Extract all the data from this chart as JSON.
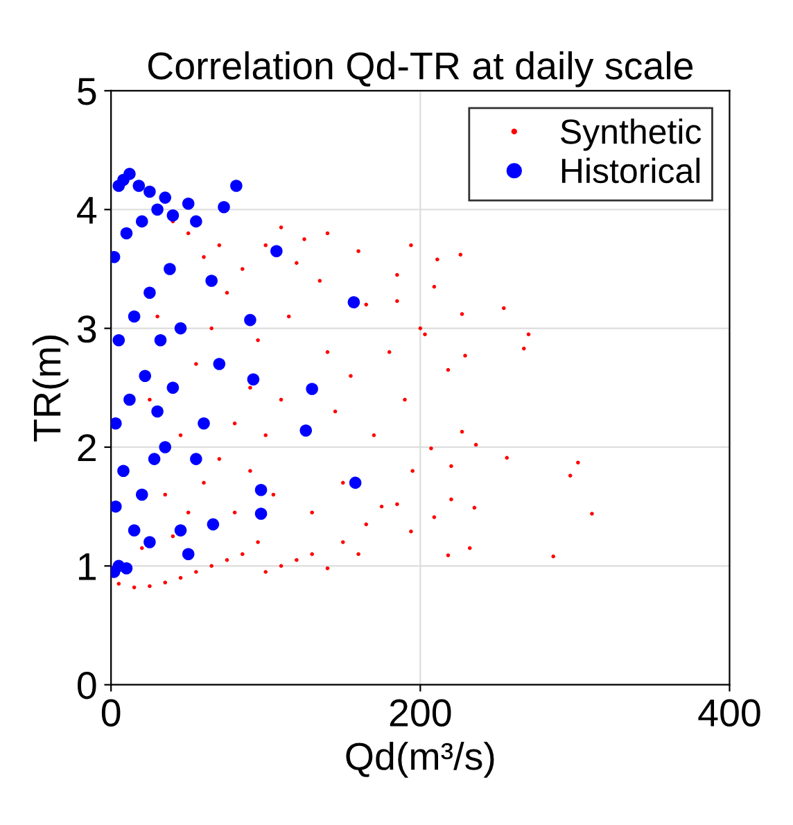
{
  "chart_data": {
    "type": "scatter",
    "title": "Correlation Qd-TR at daily scale",
    "xlabel": "Qd(m³/s)",
    "ylabel": "TR(m)",
    "xlim": [
      0,
      400
    ],
    "ylim": [
      0,
      5
    ],
    "xticks": [
      0,
      200,
      400
    ],
    "yticks": [
      0,
      1,
      2,
      3,
      4,
      5
    ],
    "grid": true,
    "legend": "top right",
    "marker": "circle",
    "series": [
      {
        "name": "Synthetic",
        "color": "#ff0000",
        "x": [
          5,
          15,
          25,
          35,
          45,
          55,
          65,
          75,
          85,
          95,
          100,
          110,
          120,
          130,
          140,
          150,
          160,
          40,
          50,
          60,
          70,
          80,
          90,
          55,
          65,
          75,
          60,
          50,
          40,
          70,
          85,
          95,
          100,
          105,
          110,
          115,
          120,
          125,
          135,
          140,
          145,
          150,
          155,
          160,
          165,
          170,
          175,
          180,
          185,
          190,
          195,
          200,
          45,
          35,
          30,
          25,
          20,
          80,
          90,
          100,
          110,
          130,
          140,
          165,
          254,
          270,
          267,
          302,
          297,
          311,
          286,
          256,
          232,
          218,
          236,
          227,
          235,
          220,
          227,
          229,
          226,
          194,
          211,
          194,
          209,
          185,
          207,
          218,
          203,
          185,
          209,
          220
        ],
        "values": [
          0.85,
          0.82,
          0.83,
          0.86,
          0.9,
          0.95,
          1.0,
          1.05,
          1.1,
          1.2,
          0.95,
          1.0,
          1.05,
          1.1,
          0.98,
          1.2,
          1.1,
          1.25,
          1.45,
          1.7,
          1.9,
          2.2,
          2.5,
          2.7,
          3.0,
          3.3,
          3.6,
          3.8,
          3.9,
          3.7,
          3.5,
          2.9,
          2.1,
          1.6,
          2.4,
          3.1,
          3.55,
          3.75,
          3.4,
          2.8,
          2.3,
          1.7,
          2.6,
          3.65,
          3.2,
          2.1,
          1.5,
          2.8,
          3.45,
          2.4,
          1.8,
          3.0,
          2.1,
          1.6,
          3.1,
          2.4,
          1.15,
          1.45,
          1.8,
          3.7,
          3.85,
          1.45,
          3.8,
          1.35,
          3.17,
          2.95,
          2.83,
          1.87,
          1.76,
          1.44,
          1.08,
          1.91,
          1.15,
          1.09,
          2.02,
          2.13,
          1.49,
          1.56,
          3.12,
          2.77,
          3.62,
          3.7,
          3.58,
          1.29,
          1.41,
          1.52,
          1.99,
          2.65,
          2.95,
          3.23,
          3.35,
          1.84
        ]
      },
      {
        "name": "Historical",
        "color": "#0000ff",
        "x": [
          2,
          5,
          10,
          3,
          8,
          15,
          20,
          25,
          28,
          3,
          12,
          22,
          30,
          35,
          5,
          15,
          25,
          32,
          38,
          2,
          10,
          20,
          30,
          40,
          50,
          55,
          5,
          12,
          8,
          18,
          25,
          35,
          45,
          50,
          40,
          45,
          60,
          55,
          65,
          70,
          107,
          157,
          130,
          126,
          158,
          81,
          73,
          97,
          66,
          92,
          90,
          97
        ],
        "values": [
          0.95,
          1.0,
          0.98,
          1.5,
          1.8,
          1.3,
          1.6,
          1.2,
          1.9,
          2.2,
          2.4,
          2.6,
          2.3,
          2.0,
          2.9,
          3.1,
          3.3,
          2.9,
          3.5,
          3.6,
          3.8,
          3.9,
          4.0,
          3.95,
          4.05,
          3.9,
          4.2,
          4.3,
          4.25,
          4.2,
          4.15,
          4.1,
          1.3,
          1.1,
          2.5,
          3.0,
          2.2,
          1.9,
          3.4,
          2.7,
          3.65,
          3.22,
          2.49,
          2.14,
          1.7,
          4.2,
          4.02,
          1.44,
          1.35,
          2.57,
          3.07,
          1.64
        ]
      }
    ]
  }
}
